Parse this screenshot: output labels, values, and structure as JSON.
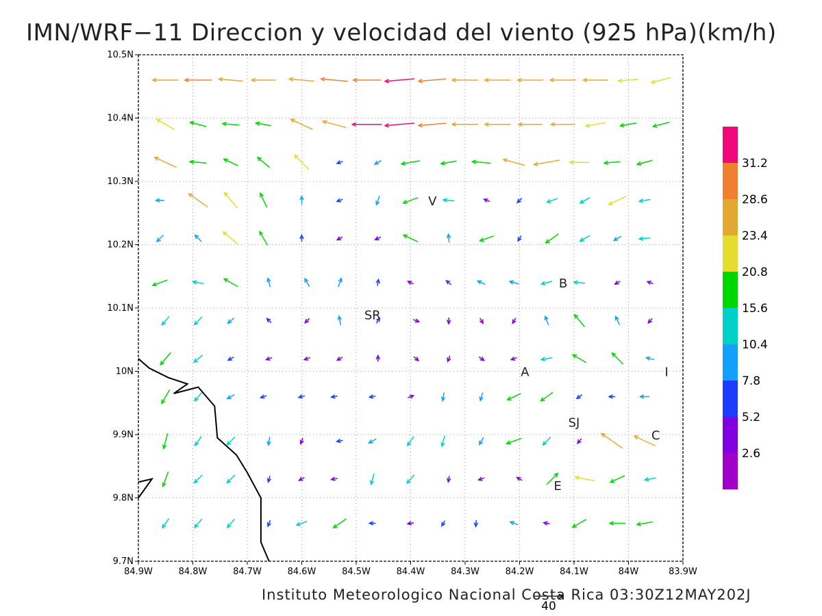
{
  "title": "IMN/WRF−11 Direccion y velocidad del viento (925 hPa)(km/h)",
  "footer": "Instituto Meteorologico Nacional Costa Rica 03:30Z12MAY202J",
  "reference_vector": {
    "label": "40"
  },
  "map": {
    "lat_range": [
      9.7,
      10.5
    ],
    "lon_range": [
      -84.9,
      -83.9
    ],
    "grid": true,
    "x_ticks": [
      "84.9W",
      "84.8W",
      "84.7W",
      "84.6W",
      "84.5W",
      "84.4W",
      "84.3W",
      "84.2W",
      "84.1W",
      "84W",
      "83.9W"
    ],
    "y_ticks": [
      "10.5N",
      "10.4N",
      "10.3N",
      "10.2N",
      "10.1N",
      "10N",
      "9.9N",
      "9.8N",
      "9.7N"
    ],
    "places": [
      {
        "label": "V",
        "lon": -84.36,
        "lat": 10.27
      },
      {
        "label": "B",
        "lon": -84.12,
        "lat": 10.14
      },
      {
        "label": "SR",
        "lon": -84.47,
        "lat": 10.09
      },
      {
        "label": "A",
        "lon": -84.19,
        "lat": 10.0
      },
      {
        "label": "I",
        "lon": -83.93,
        "lat": 10.0
      },
      {
        "label": "SJ",
        "lon": -84.1,
        "lat": 9.92
      },
      {
        "label": "C",
        "lon": -83.95,
        "lat": 9.9
      },
      {
        "label": "E",
        "lon": -84.13,
        "lat": 9.82
      }
    ],
    "coastline": [
      [
        -84.9,
        10.02
      ],
      [
        -84.88,
        10.005
      ],
      [
        -84.845,
        9.99
      ],
      [
        -84.81,
        9.98
      ],
      [
        -84.835,
        9.965
      ],
      [
        -84.79,
        9.975
      ],
      [
        -84.76,
        9.945
      ],
      [
        -84.755,
        9.895
      ],
      [
        -84.72,
        9.868
      ],
      [
        -84.7,
        9.84
      ],
      [
        -84.675,
        9.8
      ],
      [
        -84.675,
        9.73
      ],
      [
        -84.66,
        9.7
      ]
    ],
    "coastline2": [
      [
        -84.9,
        9.825
      ],
      [
        -84.875,
        9.83
      ],
      [
        -84.9,
        9.8
      ]
    ]
  },
  "colorbar": {
    "labels": [
      "31.2",
      "28.6",
      "23.4",
      "20.8",
      "15.6",
      "10.4",
      "7.8",
      "5.2",
      "2.6"
    ],
    "colors": [
      "#f0087a",
      "#f08030",
      "#e4a830",
      "#e6dc30",
      "#00d600",
      "#00d0c8",
      "#12a0fa",
      "#1e3cff",
      "#8000e0",
      "#a000c8"
    ]
  },
  "wind_rows": [
    {
      "lat": 10.46,
      "arrows": [
        [
          -84.85,
          10.46,
          180,
          28.0
        ],
        [
          -84.79,
          10.46,
          180,
          29.0
        ],
        [
          -84.73,
          10.46,
          175,
          26.0
        ],
        [
          -84.67,
          10.46,
          180,
          26.0
        ],
        [
          -84.6,
          10.46,
          175,
          27.0
        ],
        [
          -84.54,
          10.46,
          175,
          29.0
        ],
        [
          -84.48,
          10.46,
          180,
          30.0
        ],
        [
          -84.42,
          10.46,
          185,
          32.0
        ],
        [
          -84.36,
          10.46,
          185,
          30.0
        ],
        [
          -84.3,
          10.46,
          180,
          28.0
        ],
        [
          -84.24,
          10.46,
          180,
          28.0
        ],
        [
          -84.18,
          10.46,
          180,
          28.0
        ],
        [
          -84.12,
          10.46,
          180,
          28.0
        ],
        [
          -84.06,
          10.46,
          180,
          27.0
        ],
        [
          -84.0,
          10.46,
          185,
          22.0
        ],
        [
          -83.94,
          10.46,
          195,
          22.0
        ]
      ]
    },
    {
      "lat": 10.39,
      "arrows": [
        [
          -84.85,
          10.39,
          150,
          22.0
        ],
        [
          -84.79,
          10.39,
          165,
          18.0
        ],
        [
          -84.73,
          10.39,
          175,
          18.0
        ],
        [
          -84.67,
          10.39,
          170,
          17.0
        ],
        [
          -84.6,
          10.39,
          155,
          26.0
        ],
        [
          -84.54,
          10.39,
          165,
          26.0
        ],
        [
          -84.48,
          10.39,
          180,
          32.0
        ],
        [
          -84.42,
          10.39,
          185,
          32.0
        ],
        [
          -84.36,
          10.39,
          185,
          30.0
        ],
        [
          -84.3,
          10.39,
          180,
          28.0
        ],
        [
          -84.24,
          10.39,
          180,
          28.0
        ],
        [
          -84.18,
          10.39,
          180,
          26.0
        ],
        [
          -84.12,
          10.39,
          180,
          26.0
        ],
        [
          -84.06,
          10.39,
          190,
          22.0
        ],
        [
          -84.0,
          10.39,
          190,
          18.0
        ],
        [
          -83.94,
          10.39,
          195,
          18.0
        ]
      ]
    },
    {
      "lat": 10.33,
      "arrows": [
        [
          -84.85,
          10.33,
          155,
          26.0
        ],
        [
          -84.79,
          10.33,
          175,
          18.0
        ],
        [
          -84.73,
          10.33,
          155,
          17.0
        ],
        [
          -84.67,
          10.33,
          140,
          17.0
        ],
        [
          -84.6,
          10.33,
          135,
          22.0
        ],
        [
          -84.53,
          10.33,
          200,
          6.0
        ],
        [
          -84.46,
          10.33,
          210,
          8.0
        ],
        [
          -84.4,
          10.33,
          190,
          20.0
        ],
        [
          -84.33,
          10.33,
          190,
          17.0
        ],
        [
          -84.27,
          10.33,
          175,
          20.0
        ],
        [
          -84.21,
          10.33,
          165,
          24.0
        ],
        [
          -84.15,
          10.33,
          190,
          28.0
        ],
        [
          -84.09,
          10.33,
          180,
          21.0
        ],
        [
          -84.03,
          10.33,
          185,
          17.0
        ],
        [
          -83.97,
          10.33,
          195,
          17.0
        ]
      ]
    },
    {
      "lat": 10.27,
      "arrows": [
        [
          -84.86,
          10.27,
          180,
          9.0
        ],
        [
          -84.79,
          10.27,
          145,
          25.0
        ],
        [
          -84.73,
          10.27,
          130,
          22.0
        ],
        [
          -84.67,
          10.27,
          115,
          17.0
        ],
        [
          -84.6,
          10.27,
          90,
          9.0
        ],
        [
          -84.53,
          10.27,
          200,
          6.0
        ],
        [
          -84.46,
          10.27,
          250,
          10.0
        ],
        [
          -84.4,
          10.27,
          200,
          17.0
        ],
        [
          -84.33,
          10.27,
          175,
          12.0
        ],
        [
          -84.26,
          10.27,
          160,
          5.0
        ],
        [
          -84.2,
          10.27,
          225,
          7.0
        ],
        [
          -84.14,
          10.27,
          200,
          12.0
        ],
        [
          -84.08,
          10.27,
          210,
          12.0
        ],
        [
          -84.02,
          10.27,
          205,
          21.0
        ],
        [
          -83.97,
          10.27,
          190,
          12.0
        ]
      ]
    },
    {
      "lat": 10.21,
      "arrows": [
        [
          -84.86,
          10.21,
          225,
          10.0
        ],
        [
          -84.79,
          10.21,
          135,
          10.0
        ],
        [
          -84.73,
          10.21,
          140,
          22.0
        ],
        [
          -84.67,
          10.21,
          120,
          17.0
        ],
        [
          -84.6,
          10.21,
          90,
          7.0
        ],
        [
          -84.53,
          10.21,
          210,
          3.0
        ],
        [
          -84.46,
          10.21,
          205,
          3.0
        ],
        [
          -84.4,
          10.21,
          155,
          17.0
        ],
        [
          -84.33,
          10.21,
          95,
          9.0
        ],
        [
          -84.26,
          10.21,
          200,
          16.0
        ],
        [
          -84.2,
          10.21,
          240,
          6.0
        ],
        [
          -84.14,
          10.21,
          215,
          17.0
        ],
        [
          -84.08,
          10.21,
          210,
          12.0
        ],
        [
          -84.02,
          10.21,
          210,
          9.0
        ],
        [
          -83.97,
          10.21,
          185,
          12.0
        ]
      ]
    },
    {
      "lat": 10.14,
      "arrows": [
        [
          -84.86,
          10.14,
          200,
          17.0
        ],
        [
          -84.79,
          10.14,
          170,
          12.0
        ],
        [
          -84.73,
          10.14,
          150,
          17.0
        ],
        [
          -84.66,
          10.14,
          105,
          10.0
        ],
        [
          -84.59,
          10.14,
          120,
          10.0
        ],
        [
          -84.53,
          10.14,
          70,
          10.0
        ],
        [
          -84.46,
          10.14,
          80,
          7.0
        ],
        [
          -84.4,
          10.14,
          155,
          4.0
        ],
        [
          -84.33,
          10.14,
          140,
          7.0
        ],
        [
          -84.27,
          10.14,
          155,
          9.0
        ],
        [
          -84.21,
          10.14,
          165,
          10.0
        ],
        [
          -84.15,
          10.14,
          195,
          12.0
        ],
        [
          -84.09,
          10.14,
          175,
          12.0
        ],
        [
          -84.02,
          10.14,
          210,
          3.0
        ],
        [
          -83.96,
          10.14,
          160,
          3.0
        ]
      ]
    },
    {
      "lat": 10.08,
      "arrows": [
        [
          -84.85,
          10.08,
          230,
          12.0
        ],
        [
          -84.79,
          10.08,
          225,
          12.0
        ],
        [
          -84.73,
          10.08,
          220,
          9.0
        ],
        [
          -84.66,
          10.08,
          135,
          6.0
        ],
        [
          -84.59,
          10.08,
          225,
          3.0
        ],
        [
          -84.53,
          10.08,
          100,
          10.0
        ],
        [
          -84.46,
          10.08,
          60,
          6.0
        ],
        [
          -84.39,
          10.08,
          340,
          3.0
        ],
        [
          -84.33,
          10.08,
          270,
          3.0
        ],
        [
          -84.27,
          10.08,
          300,
          2.5
        ],
        [
          -84.21,
          10.08,
          240,
          3.5
        ],
        [
          -84.15,
          10.08,
          110,
          10.0
        ],
        [
          -84.09,
          10.08,
          130,
          17.0
        ],
        [
          -84.02,
          10.08,
          115,
          10.0
        ],
        [
          -83.96,
          10.08,
          230,
          3.0
        ]
      ]
    },
    {
      "lat": 10.02,
      "arrows": [
        [
          -84.85,
          10.02,
          230,
          17.0
        ],
        [
          -84.79,
          10.02,
          220,
          12.0
        ],
        [
          -84.73,
          10.02,
          210,
          7.0
        ],
        [
          -84.66,
          10.02,
          200,
          3.0
        ],
        [
          -84.59,
          10.02,
          200,
          3.0
        ],
        [
          -84.53,
          10.02,
          210,
          3.0
        ],
        [
          -84.46,
          10.02,
          90,
          3.0
        ],
        [
          -84.39,
          10.02,
          320,
          3.0
        ],
        [
          -84.33,
          10.02,
          250,
          3.0
        ],
        [
          -84.27,
          10.02,
          325,
          3.0
        ],
        [
          -84.21,
          10.02,
          200,
          3.0
        ],
        [
          -84.15,
          10.02,
          190,
          12.0
        ],
        [
          -84.09,
          10.02,
          150,
          17.0
        ],
        [
          -84.02,
          10.02,
          135,
          17.0
        ],
        [
          -83.96,
          10.02,
          165,
          9.0
        ]
      ]
    },
    {
      "lat": 9.96,
      "arrows": [
        [
          -84.85,
          9.96,
          240,
          17.0
        ],
        [
          -84.79,
          9.96,
          230,
          12.0
        ],
        [
          -84.73,
          9.96,
          210,
          9.0
        ],
        [
          -84.67,
          9.96,
          200,
          6.0
        ],
        [
          -84.6,
          9.96,
          195,
          6.0
        ],
        [
          -84.54,
          9.96,
          190,
          6.0
        ],
        [
          -84.47,
          9.96,
          190,
          6.0
        ],
        [
          -84.4,
          9.96,
          20,
          3.0
        ],
        [
          -84.34,
          9.96,
          260,
          9.0
        ],
        [
          -84.27,
          9.96,
          255,
          9.0
        ],
        [
          -84.21,
          9.96,
          205,
          16.0
        ],
        [
          -84.15,
          9.96,
          215,
          16.0
        ],
        [
          -84.09,
          9.96,
          215,
          7.0
        ],
        [
          -84.03,
          9.96,
          180,
          6.0
        ],
        [
          -83.97,
          9.96,
          180,
          10.0
        ]
      ]
    },
    {
      "lat": 9.89,
      "arrows": [
        [
          -84.85,
          9.89,
          255,
          17.0
        ],
        [
          -84.79,
          9.89,
          235,
          12.0
        ],
        [
          -84.73,
          9.89,
          225,
          12.0
        ],
        [
          -84.66,
          9.89,
          260,
          9.0
        ],
        [
          -84.6,
          9.89,
          250,
          4.0
        ],
        [
          -84.53,
          9.89,
          190,
          6.0
        ],
        [
          -84.47,
          9.89,
          210,
          9.0
        ],
        [
          -84.4,
          9.89,
          235,
          12.0
        ],
        [
          -84.34,
          9.89,
          255,
          12.0
        ],
        [
          -84.27,
          9.89,
          240,
          9.0
        ],
        [
          -84.21,
          9.89,
          200,
          17.0
        ],
        [
          -84.15,
          9.89,
          225,
          12.0
        ],
        [
          -84.09,
          9.89,
          230,
          3.0
        ],
        [
          -84.03,
          9.89,
          145,
          28.0
        ],
        [
          -83.97,
          9.89,
          155,
          25.0
        ]
      ]
    },
    {
      "lat": 9.83,
      "arrows": [
        [
          -84.85,
          9.83,
          250,
          17.0
        ],
        [
          -84.79,
          9.83,
          225,
          12.0
        ],
        [
          -84.73,
          9.83,
          225,
          12.0
        ],
        [
          -84.66,
          9.83,
          255,
          7.0
        ],
        [
          -84.6,
          9.83,
          210,
          3.0
        ],
        [
          -84.54,
          9.83,
          190,
          3.0
        ],
        [
          -84.47,
          9.83,
          255,
          12.0
        ],
        [
          -84.4,
          9.83,
          230,
          12.0
        ],
        [
          -84.33,
          9.83,
          260,
          3.0
        ],
        [
          -84.27,
          9.83,
          200,
          3.0
        ],
        [
          -84.2,
          9.83,
          150,
          3.0
        ],
        [
          -84.14,
          9.83,
          45,
          17.0
        ],
        [
          -84.08,
          9.83,
          170,
          21.0
        ],
        [
          -84.02,
          9.83,
          205,
          17.0
        ],
        [
          -83.96,
          9.83,
          190,
          12.0
        ]
      ]
    },
    {
      "lat": 9.76,
      "arrows": [
        [
          -84.85,
          9.76,
          235,
          12.0
        ],
        [
          -84.79,
          9.76,
          230,
          12.0
        ],
        [
          -84.73,
          9.76,
          230,
          12.0
        ],
        [
          -84.66,
          9.76,
          250,
          7.0
        ],
        [
          -84.6,
          9.76,
          200,
          12.0
        ],
        [
          -84.53,
          9.76,
          215,
          17.0
        ],
        [
          -84.47,
          9.76,
          180,
          6.0
        ],
        [
          -84.4,
          9.76,
          190,
          3.0
        ],
        [
          -84.34,
          9.76,
          240,
          6.0
        ],
        [
          -84.28,
          9.76,
          265,
          7.0
        ],
        [
          -84.21,
          9.76,
          160,
          9.0
        ],
        [
          -84.15,
          9.76,
          170,
          3.0
        ],
        [
          -84.09,
          9.76,
          210,
          17.0
        ],
        [
          -84.02,
          9.76,
          180,
          17.0
        ],
        [
          -83.97,
          9.76,
          190,
          17.0
        ]
      ]
    }
  ]
}
